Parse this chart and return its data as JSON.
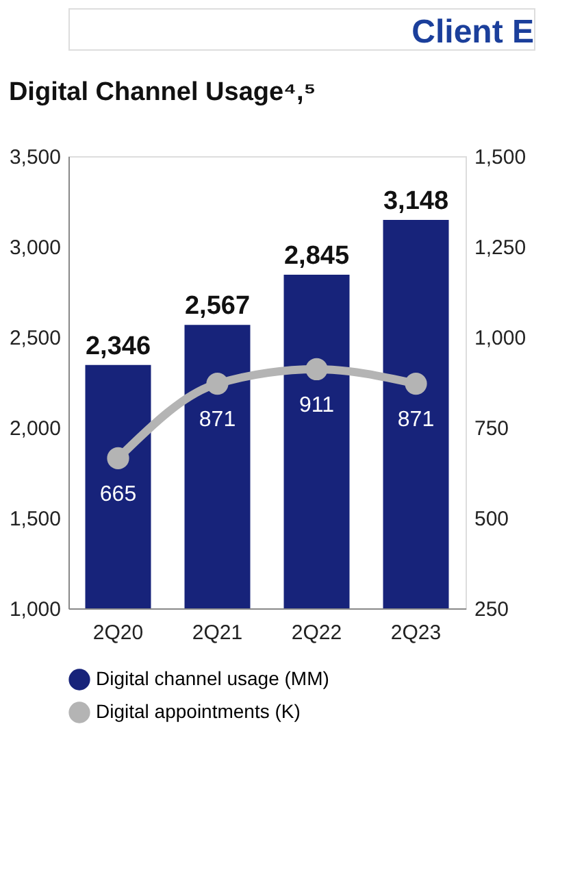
{
  "chart_data": {
    "type": "bar",
    "title": "Digital Channel Usage⁴,⁵",
    "annotations": [
      "Client E"
    ],
    "categories": [
      "2Q20",
      "2Q21",
      "2Q22",
      "2Q23"
    ],
    "series": [
      {
        "name": "Digital channel usage (MM)",
        "color": "#17237a",
        "values": [
          2346,
          2567,
          2845,
          3148
        ],
        "value_labels": [
          "2,346",
          "2,567",
          "2,845",
          "3,148"
        ]
      },
      {
        "name": "Digital appointments (K)",
        "color": "#b4b4b4",
        "type": "line",
        "axis": "y2",
        "values": [
          665,
          871,
          911,
          871
        ]
      }
    ],
    "ylim": [
      1000,
      3500
    ],
    "yticks": [
      {
        "value": 1000,
        "label": "1,000"
      },
      {
        "value": 1500,
        "label": "1,500"
      },
      {
        "value": 2000,
        "label": "2,000"
      },
      {
        "value": 2500,
        "label": "2,500"
      },
      {
        "value": 3000,
        "label": "3,000"
      },
      {
        "value": 3500,
        "label": "3,500"
      }
    ],
    "y2lim": [
      250,
      1500
    ],
    "y2ticks": [
      250,
      500,
      750,
      {
        "value": 1000,
        "label": "1,000"
      },
      {
        "value": 1250,
        "label": "1,250"
      },
      {
        "value": 1500,
        "label": "1,500"
      }
    ],
    "data_labels": true,
    "legend": "bottom",
    "marker": "circle",
    "grid": false
  }
}
